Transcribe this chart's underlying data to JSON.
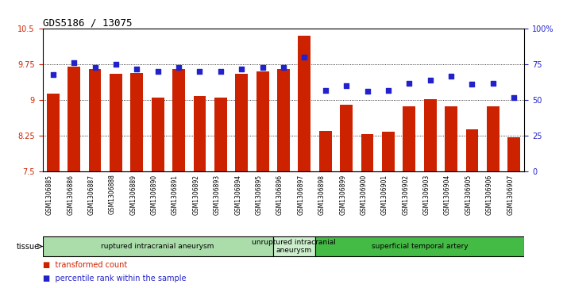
{
  "title": "GDS5186 / 13075",
  "samples": [
    "GSM1306885",
    "GSM1306886",
    "GSM1306887",
    "GSM1306888",
    "GSM1306889",
    "GSM1306890",
    "GSM1306891",
    "GSM1306892",
    "GSM1306893",
    "GSM1306894",
    "GSM1306895",
    "GSM1306896",
    "GSM1306897",
    "GSM1306898",
    "GSM1306899",
    "GSM1306900",
    "GSM1306901",
    "GSM1306902",
    "GSM1306903",
    "GSM1306904",
    "GSM1306905",
    "GSM1306906",
    "GSM1306907"
  ],
  "bar_values": [
    9.13,
    9.7,
    9.65,
    9.55,
    9.57,
    9.05,
    9.65,
    9.08,
    9.05,
    9.55,
    9.6,
    9.65,
    10.35,
    8.35,
    8.9,
    8.28,
    8.33,
    8.87,
    9.02,
    8.87,
    8.38,
    8.87,
    8.22
  ],
  "dot_values": [
    68,
    76,
    73,
    75,
    72,
    70,
    73,
    70,
    70,
    72,
    73,
    73,
    80,
    57,
    60,
    56,
    57,
    62,
    64,
    67,
    61,
    62,
    52
  ],
  "ylim_left": [
    7.5,
    10.5
  ],
  "ylim_right": [
    0,
    100
  ],
  "yticks_left": [
    7.5,
    8.25,
    9.0,
    9.75,
    10.5
  ],
  "yticks_right": [
    0,
    25,
    50,
    75,
    100
  ],
  "ytick_labels_left": [
    "7.5",
    "8.25",
    "9",
    "9.75",
    "10.5"
  ],
  "ytick_labels_right": [
    "0",
    "25",
    "50",
    "75",
    "100%"
  ],
  "bar_color": "#CC2200",
  "dot_color": "#2222CC",
  "tissue_groups": [
    {
      "label": "ruptured intracranial aneurysm",
      "start": 0,
      "end": 11,
      "color": "#AADDAA"
    },
    {
      "label": "unruptured intracranial\naneurysm",
      "start": 11,
      "end": 13,
      "color": "#CCEECC"
    },
    {
      "label": "superficial temporal artery",
      "start": 13,
      "end": 23,
      "color": "#44BB44"
    }
  ],
  "tissue_label": "tissue",
  "plot_bg": "#FFFFFF",
  "xtick_bg": "#DDDDDD"
}
